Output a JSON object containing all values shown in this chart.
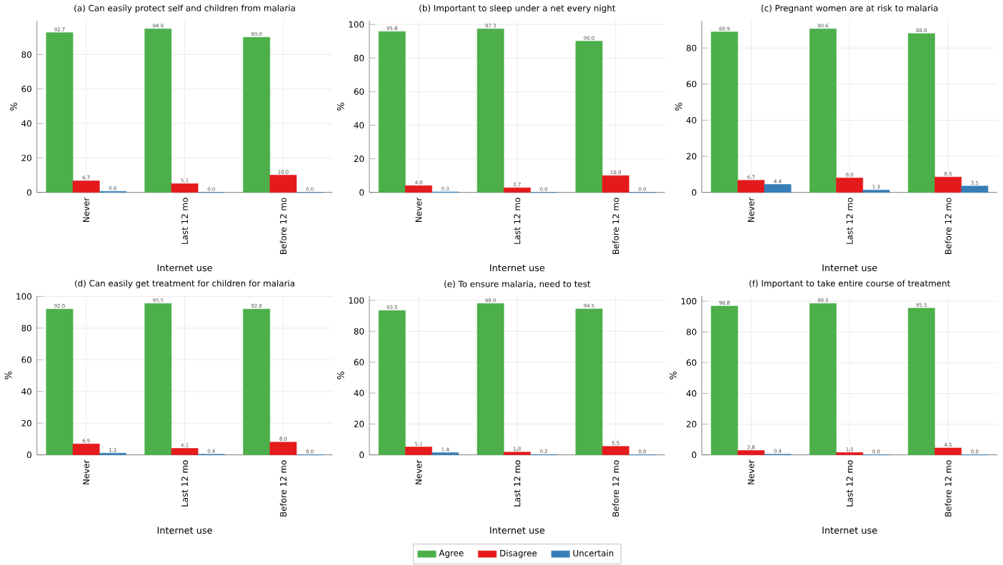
{
  "chart_data": [
    {
      "type": "bar",
      "title": "(a) Can easily protect self and children from malaria",
      "xlabel": "Internet use",
      "ylabel": "%",
      "categories": [
        "Never",
        "Last 12 mo",
        "Before 12 mo"
      ],
      "ylim": [
        0,
        99.6
      ],
      "yticks": [
        0,
        20,
        40,
        60,
        80
      ],
      "grid": true,
      "series": [
        {
          "color": "#4daf4a",
          "values": [
            92.7,
            94.9,
            90.0
          ],
          "value_labels": [
            "92.7",
            "94.9",
            "90.0"
          ]
        },
        {
          "color": "#e41a1c",
          "values": [
            6.7,
            5.1,
            10.0
          ],
          "value_labels": [
            "6.7",
            "5.1",
            "10.0"
          ]
        },
        {
          "color": "#377eb8",
          "values": [
            0.6,
            0.0,
            0.0
          ],
          "value_labels": [
            "0.6",
            "0.0",
            "0.0"
          ]
        }
      ]
    },
    {
      "type": "bar",
      "title": "(b) Important to sleep under a net every night",
      "xlabel": "Internet use",
      "ylabel": "%",
      "categories": [
        "Never",
        "Last 12 mo",
        "Before 12 mo"
      ],
      "ylim": [
        0,
        102.2
      ],
      "yticks": [
        0,
        20,
        40,
        60,
        80,
        100
      ],
      "grid": true,
      "series": [
        {
          "color": "#4daf4a",
          "values": [
            95.8,
            97.3,
            90.0
          ],
          "value_labels": [
            "95.8",
            "97.3",
            "90.0"
          ]
        },
        {
          "color": "#e41a1c",
          "values": [
            4.0,
            2.7,
            10.0
          ],
          "value_labels": [
            "4.0",
            "2.7",
            "10.0"
          ]
        },
        {
          "color": "#377eb8",
          "values": [
            0.3,
            0.0,
            0.0
          ],
          "value_labels": [
            "0.3",
            "0.0",
            "0.0"
          ]
        }
      ]
    },
    {
      "type": "bar",
      "title": "(c) Pregnant women are at risk to malaria",
      "xlabel": "Internet use",
      "ylabel": "%",
      "categories": [
        "Never",
        "Last 12 mo",
        "Before 12 mo"
      ],
      "ylim": [
        0,
        95.1
      ],
      "yticks": [
        0,
        20,
        40,
        60,
        80
      ],
      "grid": true,
      "series": [
        {
          "color": "#4daf4a",
          "values": [
            88.9,
            90.6,
            88.0
          ],
          "value_labels": [
            "88.9",
            "90.6",
            "88.0"
          ]
        },
        {
          "color": "#e41a1c",
          "values": [
            6.7,
            8.0,
            8.5
          ],
          "value_labels": [
            "6.7",
            "8.0",
            "8.5"
          ]
        },
        {
          "color": "#377eb8",
          "values": [
            4.4,
            1.3,
            3.5
          ],
          "value_labels": [
            "4.4",
            "1.3",
            "3.5"
          ]
        }
      ]
    },
    {
      "type": "bar",
      "title": "(d) Can easily get treatment for children for malaria",
      "xlabel": "Internet use",
      "ylabel": "%",
      "categories": [
        "Never",
        "Last 12 mo",
        "Before 12 mo"
      ],
      "ylim": [
        0,
        100.3
      ],
      "yticks": [
        0,
        20,
        40,
        60,
        80,
        100
      ],
      "grid": true,
      "series": [
        {
          "color": "#4daf4a",
          "values": [
            92.0,
            95.5,
            92.0
          ],
          "value_labels": [
            "92.0",
            "95.5",
            "92.0"
          ]
        },
        {
          "color": "#e41a1c",
          "values": [
            6.9,
            4.1,
            8.0
          ],
          "value_labels": [
            "6.9",
            "4.1",
            "8.0"
          ]
        },
        {
          "color": "#377eb8",
          "values": [
            1.1,
            0.4,
            0.0
          ],
          "value_labels": [
            "1.1",
            "0.4",
            "0.0"
          ]
        }
      ]
    },
    {
      "type": "bar",
      "title": "(e) To ensure malaria, need to test",
      "xlabel": "Internet use",
      "ylabel": "%",
      "categories": [
        "Never",
        "Last 12 mo",
        "Before 12 mo"
      ],
      "ylim": [
        0,
        102.9
      ],
      "yticks": [
        0,
        20,
        40,
        60,
        80,
        100
      ],
      "grid": true,
      "legend": "bottom",
      "series": [
        {
          "name": "Agree",
          "color": "#4daf4a",
          "values": [
            93.5,
            98.0,
            94.5
          ],
          "value_labels": [
            "93.5",
            "98.0",
            "94.5"
          ]
        },
        {
          "name": "Disagree",
          "color": "#e41a1c",
          "values": [
            5.1,
            1.8,
            5.5
          ],
          "value_labels": [
            "5.1",
            "1.8",
            "5.5"
          ]
        },
        {
          "name": "Uncertain",
          "color": "#377eb8",
          "values": [
            1.4,
            0.2,
            0.0
          ],
          "value_labels": [
            "1.4",
            "0.2",
            "0.0"
          ]
        }
      ]
    },
    {
      "type": "bar",
      "title": "(f) Important to take entire course of treatment",
      "xlabel": "Internet use",
      "ylabel": "%",
      "categories": [
        "Never",
        "Last 12 mo",
        "Before 12 mo"
      ],
      "ylim": [
        0,
        103.4
      ],
      "yticks": [
        0,
        20,
        40,
        60,
        80,
        100
      ],
      "grid": true,
      "series": [
        {
          "color": "#4daf4a",
          "values": [
            96.8,
            98.5,
            95.5
          ],
          "value_labels": [
            "96.8",
            "98.5",
            "95.5"
          ]
        },
        {
          "color": "#e41a1c",
          "values": [
            2.8,
            1.5,
            4.5
          ],
          "value_labels": [
            "2.8",
            "1.5",
            "4.5"
          ]
        },
        {
          "color": "#377eb8",
          "values": [
            0.4,
            0.0,
            0.0
          ],
          "value_labels": [
            "0.4",
            "0.0",
            "0.0"
          ]
        }
      ]
    }
  ]
}
